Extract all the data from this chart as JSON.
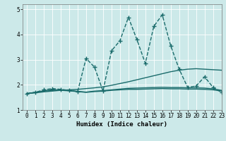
{
  "xlabel": "Humidex (Indice chaleur)",
  "xlim": [
    -0.5,
    23
  ],
  "ylim": [
    1,
    5.2
  ],
  "xticks": [
    0,
    1,
    2,
    3,
    4,
    5,
    6,
    7,
    8,
    9,
    10,
    11,
    12,
    13,
    14,
    15,
    16,
    17,
    18,
    19,
    20,
    21,
    22,
    23
  ],
  "yticks": [
    1,
    2,
    3,
    4,
    5
  ],
  "bg_color": "#cce9e9",
  "line_color": "#1a6b6b",
  "grid_color": "#b0d8d8",
  "series": [
    {
      "x": [
        0,
        1,
        2,
        3,
        4,
        5,
        6,
        7,
        8,
        9,
        10,
        11,
        12,
        13,
        14,
        15,
        16,
        17,
        18,
        19,
        20,
        21,
        22,
        23
      ],
      "y": [
        1.65,
        1.68,
        1.72,
        1.75,
        1.78,
        1.8,
        1.82,
        1.85,
        1.88,
        1.92,
        1.98,
        2.05,
        2.12,
        2.2,
        2.28,
        2.36,
        2.44,
        2.52,
        2.58,
        2.62,
        2.64,
        2.62,
        2.6,
        2.58
      ],
      "marker": null,
      "linewidth": 1.0,
      "linestyle": "-"
    },
    {
      "x": [
        0,
        1,
        2,
        3,
        4,
        5,
        6,
        7,
        8,
        9,
        10,
        11,
        12,
        13,
        14,
        15,
        16,
        17,
        18,
        19,
        20,
        21,
        22,
        23
      ],
      "y": [
        1.65,
        1.7,
        1.75,
        1.78,
        1.78,
        1.76,
        1.73,
        1.7,
        1.73,
        1.75,
        1.78,
        1.8,
        1.82,
        1.82,
        1.83,
        1.84,
        1.85,
        1.84,
        1.84,
        1.83,
        1.83,
        1.82,
        1.8,
        1.75
      ],
      "marker": null,
      "linewidth": 1.0,
      "linestyle": "-"
    },
    {
      "x": [
        0,
        1,
        2,
        3,
        4,
        5,
        6,
        7,
        8,
        9,
        10,
        11,
        12,
        13,
        14,
        15,
        16,
        17,
        18,
        19,
        20,
        21,
        22,
        23
      ],
      "y": [
        1.65,
        1.7,
        1.76,
        1.8,
        1.8,
        1.77,
        1.74,
        1.71,
        1.75,
        1.77,
        1.8,
        1.83,
        1.86,
        1.87,
        1.88,
        1.89,
        1.9,
        1.89,
        1.89,
        1.88,
        1.88,
        1.87,
        1.84,
        1.78
      ],
      "marker": null,
      "linewidth": 1.0,
      "linestyle": "-"
    },
    {
      "x": [
        0,
        1,
        2,
        3,
        4,
        5,
        6,
        7,
        8,
        9,
        10,
        11,
        12,
        13,
        14,
        15,
        16,
        17,
        18,
        19,
        20,
        21,
        22,
        23
      ],
      "y": [
        1.65,
        1.7,
        1.8,
        1.85,
        1.82,
        1.78,
        1.73,
        3.05,
        2.7,
        1.75,
        3.35,
        3.75,
        4.68,
        3.8,
        2.85,
        4.32,
        4.78,
        3.55,
        2.62,
        1.9,
        1.95,
        2.32,
        1.9,
        1.7
      ],
      "marker": "+",
      "markersize": 4,
      "linewidth": 1.0,
      "linestyle": "--"
    }
  ]
}
